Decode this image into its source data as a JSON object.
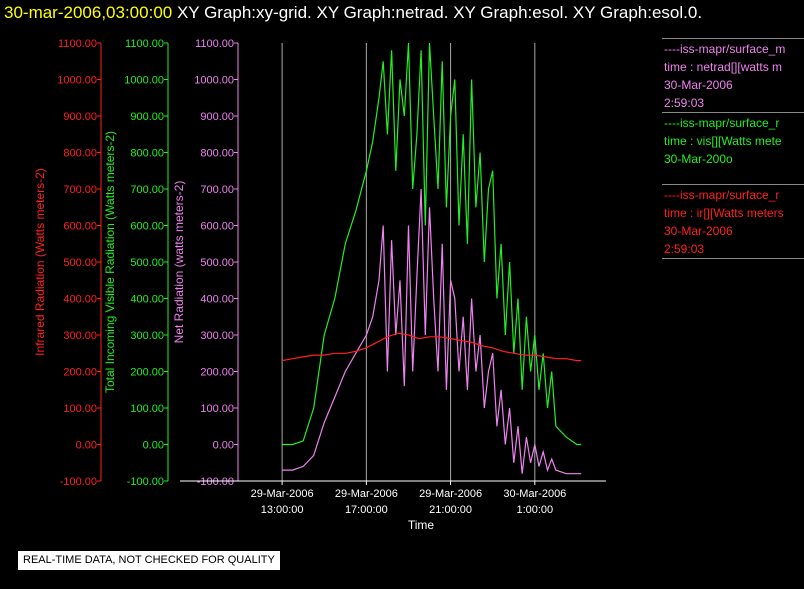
{
  "title": {
    "date": "30-mar-2006,03:00:00",
    "graphs": "XY Graph:xy-grid.  XY Graph:netrad.  XY Graph:esol.  XY Graph:esol.0."
  },
  "colors": {
    "ir": "#ff2020",
    "vis": "#22ee22",
    "net": "#ee82ee",
    "grid": "#aaaaaa",
    "background": "#000000"
  },
  "legend": [
    {
      "color": "#ee82ee",
      "lines": [
        "----iss-mapr/surface_m",
        "time : netrad[][watts m",
        "30-Mar-2006",
        "2:59:03"
      ]
    },
    {
      "color": "#22ee22",
      "lines": [
        "----iss-mapr/surface_r",
        "time : vis[][Watts mete",
        "30-Mar-200o"
      ]
    },
    {
      "color": "#ff2020",
      "lines": [
        "----iss-mapr/surface_r",
        "time : ir[][Watts meters",
        "30-Mar-2006",
        "2:59:03"
      ]
    }
  ],
  "notice": "REAL-TIME DATA, NOT CHECKED FOR QUALITY",
  "chart_data": {
    "type": "line",
    "xlabel": "Time",
    "x_ticks": [
      {
        "hours": 13,
        "line1": "29-Mar-2006",
        "line2": "13:00:00"
      },
      {
        "hours": 17,
        "line1": "29-Mar-2006",
        "line2": "17:00:00"
      },
      {
        "hours": 21,
        "line1": "29-Mar-2006",
        "line2": "21:00:00"
      },
      {
        "hours": 25,
        "line1": "30-Mar-2006",
        "line2": "1:00:00"
      }
    ],
    "xlim": [
      "29-Mar-2006 13:00",
      "30-Mar-2006 03:00"
    ],
    "ylim": [
      -100,
      1100
    ],
    "y_ticks": [
      "-100.00",
      "0.00",
      "100.00",
      "200.00",
      "300.00",
      "400.00",
      "500.00",
      "600.00",
      "700.00",
      "800.00",
      "900.00",
      "1000.00",
      "1100.00"
    ],
    "axes": [
      {
        "key": "ir",
        "label": "Infrared Radiation (Watts meters-2)",
        "color": "#ff2020"
      },
      {
        "key": "vis",
        "label": "Total Incoming Visible Radiation (Watts meters-2)",
        "color": "#22ee22"
      },
      {
        "key": "net",
        "label": "Net Radiation (watts meters-2)",
        "color": "#ee82ee"
      }
    ],
    "grid": true,
    "series": [
      {
        "key": "vis",
        "x_hours": [
          13,
          13.5,
          14,
          14.5,
          15,
          15.5,
          16,
          16.5,
          17,
          17.3,
          17.6,
          17.8,
          18,
          18.2,
          18.4,
          18.6,
          18.8,
          19,
          19.2,
          19.4,
          19.6,
          19.8,
          20,
          20.2,
          20.4,
          20.6,
          20.8,
          21,
          21.2,
          21.4,
          21.6,
          21.8,
          22,
          22.2,
          22.4,
          22.6,
          22.8,
          23,
          23.2,
          23.4,
          23.6,
          23.8,
          24,
          24.2,
          24.4,
          24.6,
          24.8,
          25,
          25.2,
          25.4,
          25.6,
          25.8,
          26,
          26.5,
          27,
          27.2
        ],
        "y": [
          0,
          0,
          10,
          100,
          300,
          400,
          550,
          640,
          750,
          830,
          950,
          1050,
          850,
          1080,
          750,
          1000,
          900,
          1100,
          700,
          850,
          1080,
          600,
          1100,
          900,
          700,
          1050,
          650,
          900,
          1000,
          600,
          850,
          550,
          1000,
          650,
          800,
          500,
          700,
          750,
          400,
          550,
          300,
          500,
          250,
          400,
          150,
          350,
          200,
          300,
          150,
          250,
          100,
          200,
          50,
          20,
          0,
          0
        ]
      },
      {
        "key": "net",
        "x_hours": [
          13,
          13.5,
          14,
          14.5,
          15,
          15.5,
          16,
          16.5,
          17,
          17.3,
          17.6,
          17.8,
          18,
          18.2,
          18.4,
          18.6,
          18.8,
          19,
          19.2,
          19.4,
          19.6,
          19.8,
          20,
          20.2,
          20.4,
          20.6,
          20.8,
          21,
          21.2,
          21.4,
          21.6,
          21.8,
          22,
          22.2,
          22.4,
          22.6,
          22.8,
          23,
          23.2,
          23.4,
          23.6,
          23.8,
          24,
          24.2,
          24.4,
          24.6,
          24.8,
          25,
          25.2,
          25.4,
          25.6,
          25.8,
          26,
          26.5,
          27,
          27.2
        ],
        "y": [
          -70,
          -70,
          -60,
          -30,
          60,
          130,
          200,
          250,
          300,
          350,
          450,
          600,
          200,
          560,
          300,
          450,
          160,
          600,
          200,
          460,
          700,
          300,
          650,
          400,
          200,
          550,
          150,
          450,
          400,
          200,
          350,
          150,
          400,
          200,
          300,
          100,
          200,
          250,
          50,
          150,
          0,
          100,
          -50,
          50,
          -80,
          20,
          -50,
          0,
          -60,
          -20,
          -70,
          -40,
          -70,
          -80,
          -80,
          -80
        ]
      },
      {
        "key": "ir",
        "x_hours": [
          13,
          13.5,
          14,
          14.5,
          15,
          15.5,
          16,
          16.5,
          17,
          17.5,
          18,
          18.5,
          19,
          19.5,
          20,
          20.5,
          21,
          21.5,
          22,
          22.5,
          23,
          23.5,
          24,
          24.5,
          25,
          25.5,
          26,
          26.5,
          27,
          27.2
        ],
        "y": [
          230,
          235,
          240,
          245,
          245,
          250,
          250,
          255,
          265,
          280,
          295,
          305,
          300,
          290,
          295,
          295,
          290,
          285,
          280,
          270,
          265,
          255,
          250,
          245,
          245,
          240,
          235,
          235,
          230,
          230
        ]
      }
    ]
  }
}
